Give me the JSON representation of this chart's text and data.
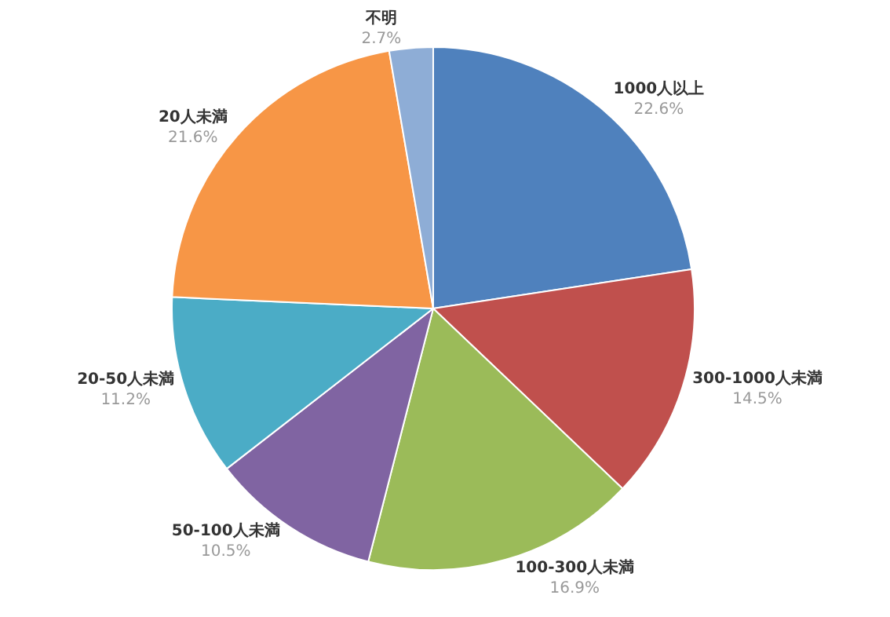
{
  "chart_data": {
    "type": "pie",
    "categories": [
      "1000人以上",
      "300-1000人未満",
      "100-300人未満",
      "50-100人未満",
      "20-50人未満",
      "20人未満",
      "不明"
    ],
    "values": [
      22.6,
      14.5,
      16.9,
      10.5,
      11.2,
      21.6,
      2.7
    ],
    "value_labels": [
      "22.6%",
      "14.5%",
      "16.9%",
      "10.5%",
      "11.2%",
      "21.6%",
      "2.7%"
    ],
    "colors": [
      "#4f81bd",
      "#c0504d",
      "#9bbb59",
      "#8064a2",
      "#4bacc6",
      "#f79646",
      "#8eadd6"
    ],
    "legend": false
  }
}
